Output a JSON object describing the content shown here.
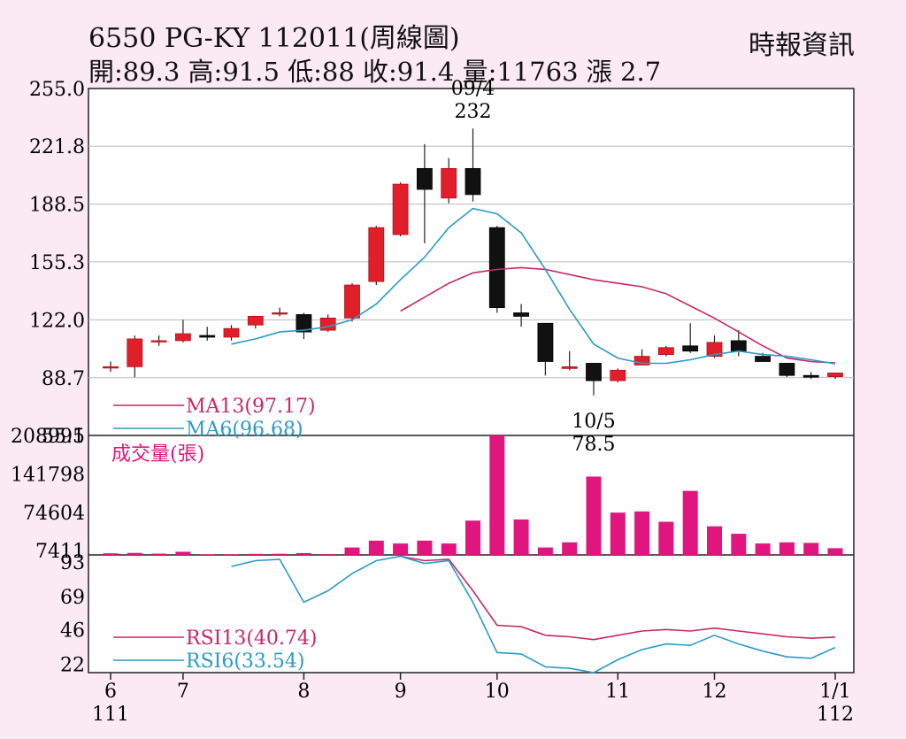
{
  "header": {
    "title": "6550  PG-KY 112011(周線圖)",
    "source": "時報資訊",
    "ohlc": "開:89.3 高:91.5 低:88 收:91.4 量:11763 漲 2.7"
  },
  "chart_data": {
    "type": "candlestick",
    "price_axis": {
      "ticks": [
        "255.0",
        "221.8",
        "188.5",
        "155.3",
        "122.0",
        "88.7",
        "55.5"
      ],
      "ylim": [
        55.5,
        255.0
      ]
    },
    "volume_axis": {
      "ticks": [
        "208991",
        "141798",
        "74604",
        "7411"
      ],
      "ylim": [
        0,
        208991
      ]
    },
    "rsi_axis": {
      "ticks": [
        "93",
        "69",
        "46",
        "22"
      ],
      "ylim": [
        16,
        98
      ]
    },
    "x_ticks": [
      {
        "i": 0,
        "label": "6"
      },
      {
        "i": 3,
        "label": "7"
      },
      {
        "i": 8,
        "label": "8"
      },
      {
        "i": 12,
        "label": "9"
      },
      {
        "i": 16,
        "label": "10"
      },
      {
        "i": 21,
        "label": "11"
      },
      {
        "i": 25,
        "label": "12"
      },
      {
        "i": 30,
        "label": "1/1"
      }
    ],
    "x_year_labels": [
      {
        "i": 0,
        "label": "111"
      },
      {
        "i": 30,
        "label": "112"
      }
    ],
    "candles": [
      {
        "o": 95,
        "h": 98,
        "l": 92,
        "c": 95,
        "v": 2800
      },
      {
        "o": 95,
        "h": 113,
        "l": 89,
        "c": 111,
        "v": 3500
      },
      {
        "o": 110,
        "h": 113,
        "l": 107,
        "c": 110,
        "v": 2200
      },
      {
        "o": 110,
        "h": 122,
        "l": 109,
        "c": 114,
        "v": 5500
      },
      {
        "o": 113,
        "h": 118,
        "l": 110,
        "c": 112,
        "v": 900
      },
      {
        "o": 112,
        "h": 119,
        "l": 110,
        "c": 117,
        "v": 1000
      },
      {
        "o": 119,
        "h": 123,
        "l": 117,
        "c": 124,
        "v": 1800
      },
      {
        "o": 126,
        "h": 129,
        "l": 124,
        "c": 126,
        "v": 2000
      },
      {
        "o": 125,
        "h": 126,
        "l": 111,
        "c": 115,
        "v": 3200
      },
      {
        "o": 116,
        "h": 125,
        "l": 115,
        "c": 123,
        "v": 1200
      },
      {
        "o": 123,
        "h": 143,
        "l": 121,
        "c": 142,
        "v": 13000
      },
      {
        "o": 144,
        "h": 176,
        "l": 142,
        "c": 175,
        "v": 25000
      },
      {
        "o": 171,
        "h": 201,
        "l": 170,
        "c": 200,
        "v": 20000
      },
      {
        "o": 209,
        "h": 223,
        "l": 166,
        "c": 197,
        "v": 25000
      },
      {
        "o": 192,
        "h": 215,
        "l": 189,
        "c": 209,
        "v": 20000
      },
      {
        "o": 209,
        "h": 232,
        "l": 190,
        "c": 194,
        "v": 60000
      },
      {
        "o": 175,
        "h": 176,
        "l": 126,
        "c": 129,
        "v": 208991
      },
      {
        "o": 126,
        "h": 131,
        "l": 118,
        "c": 124,
        "v": 62000
      },
      {
        "o": 120,
        "h": 120,
        "l": 90,
        "c": 98,
        "v": 13000
      },
      {
        "o": 94,
        "h": 104,
        "l": 93,
        "c": 95,
        "v": 22000
      },
      {
        "o": 97,
        "h": 97,
        "l": 78.5,
        "c": 87,
        "v": 137000
      },
      {
        "o": 87,
        "h": 94,
        "l": 86,
        "c": 93,
        "v": 74000
      },
      {
        "o": 96,
        "h": 105,
        "l": 96,
        "c": 101,
        "v": 76000
      },
      {
        "o": 102,
        "h": 107,
        "l": 101,
        "c": 106,
        "v": 58000
      },
      {
        "o": 107,
        "h": 120,
        "l": 103,
        "c": 104,
        "v": 112000
      },
      {
        "o": 101,
        "h": 113,
        "l": 100,
        "c": 109,
        "v": 50000
      },
      {
        "o": 110,
        "h": 116,
        "l": 101,
        "c": 104,
        "v": 37000
      },
      {
        "o": 101,
        "h": 103,
        "l": 98,
        "c": 98,
        "v": 20000
      },
      {
        "o": 97,
        "h": 97,
        "l": 89,
        "c": 90,
        "v": 22000
      },
      {
        "o": 90,
        "h": 92,
        "l": 88,
        "c": 89,
        "v": 21000
      },
      {
        "o": 89.3,
        "h": 91.5,
        "l": 88,
        "c": 91.4,
        "v": 11763
      }
    ],
    "ma": [
      {
        "name": "MA13(97.17)",
        "color": "#c8266a",
        "values": [
          null,
          null,
          null,
          null,
          null,
          null,
          null,
          null,
          null,
          null,
          null,
          null,
          127,
          135,
          143,
          149,
          151,
          152,
          151,
          148,
          145,
          143,
          141,
          137,
          130,
          123,
          115,
          107,
          100,
          98,
          97.17
        ]
      },
      {
        "name": "MA6(96.68)",
        "color": "#2a9ac8",
        "values": [
          null,
          null,
          null,
          null,
          null,
          108,
          111,
          115,
          116,
          118,
          122,
          131,
          145,
          158,
          175,
          186,
          183,
          172,
          151,
          128,
          108,
          100,
          97,
          97,
          99,
          102,
          104,
          102,
          101,
          99,
          96.68
        ]
      }
    ],
    "rsi": [
      {
        "name": "RSI13(40.74)",
        "color": "#c8266a",
        "values": [
          null,
          null,
          null,
          null,
          null,
          null,
          null,
          null,
          null,
          null,
          null,
          null,
          97,
          94,
          95,
          73,
          49,
          48,
          42,
          41,
          39,
          42,
          45,
          46,
          45,
          47,
          45,
          43,
          41,
          40,
          40.74
        ]
      },
      {
        "name": "RSI6(33.54)",
        "color": "#2a9ac8",
        "values": [
          null,
          null,
          null,
          null,
          null,
          90,
          94,
          95,
          65,
          73,
          85,
          94,
          97,
          92,
          94,
          65,
          30,
          29,
          20,
          19,
          16,
          25,
          32,
          36,
          35,
          42,
          36,
          31,
          27,
          26,
          33.54
        ]
      }
    ],
    "annotations": [
      {
        "i": 15,
        "date": "09/4",
        "value": "232",
        "pos": "above-high"
      },
      {
        "i": 20,
        "date": "10/5",
        "value": "78.5",
        "pos": "below-low"
      }
    ],
    "volume_label": "成交量(張)",
    "colors": {
      "up": "#e11f2a",
      "down": "#111111",
      "volume": "#e0157d",
      "grid": "#bbbbbb"
    }
  }
}
